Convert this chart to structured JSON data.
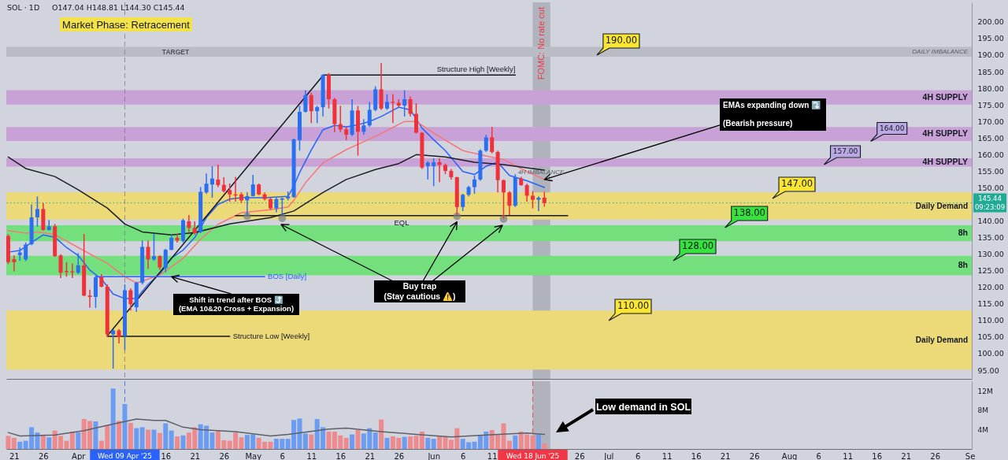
{
  "chart_data": [
    {
      "type": "candlestick",
      "title": "SOL · 1D",
      "subtitle": "O147.04 H148.81 L144.30 C145.44",
      "x": [
        "2025-03-20",
        "2025-03-21",
        "2025-03-22",
        "2025-03-23",
        "2025-03-24",
        "2025-03-25",
        "2025-03-26",
        "2025-03-27",
        "2025-03-28",
        "2025-03-29",
        "2025-03-30",
        "2025-03-31",
        "2025-04-01",
        "2025-04-02",
        "2025-04-03",
        "2025-04-04",
        "2025-04-05",
        "2025-04-06",
        "2025-04-07",
        "2025-04-08",
        "2025-04-09",
        "2025-04-10",
        "2025-04-11",
        "2025-04-12",
        "2025-04-13",
        "2025-04-14",
        "2025-04-15",
        "2025-04-16",
        "2025-04-17",
        "2025-04-18",
        "2025-04-19",
        "2025-04-20",
        "2025-04-21",
        "2025-04-22",
        "2025-04-23",
        "2025-04-24",
        "2025-04-25",
        "2025-04-26",
        "2025-04-27",
        "2025-04-28",
        "2025-04-29",
        "2025-04-30",
        "2025-05-01",
        "2025-05-02",
        "2025-05-03",
        "2025-05-04",
        "2025-05-05",
        "2025-05-06",
        "2025-05-07",
        "2025-05-08",
        "2025-05-09",
        "2025-05-10",
        "2025-05-11",
        "2025-05-12",
        "2025-05-13",
        "2025-05-14",
        "2025-05-15",
        "2025-05-16",
        "2025-05-17",
        "2025-05-18",
        "2025-05-19",
        "2025-05-20",
        "2025-05-21",
        "2025-05-22",
        "2025-05-23",
        "2025-05-24",
        "2025-05-25",
        "2025-05-26",
        "2025-05-27",
        "2025-05-28",
        "2025-05-29",
        "2025-05-30",
        "2025-05-31",
        "2025-06-01",
        "2025-06-02",
        "2025-06-03",
        "2025-06-04",
        "2025-06-05",
        "2025-06-06",
        "2025-06-07",
        "2025-06-08",
        "2025-06-09",
        "2025-06-10",
        "2025-06-11",
        "2025-06-12",
        "2025-06-13",
        "2025-06-14",
        "2025-06-15",
        "2025-06-16",
        "2025-06-17",
        "2025-06-18",
        "2025-06-19",
        "2025-06-20"
      ],
      "ohlc": [
        [
          135.5,
          136.0,
          127.0,
          127.6
        ],
        [
          128.5,
          129.6,
          124.8,
          127.6
        ],
        [
          129.7,
          132.0,
          128.0,
          130.5
        ],
        [
          128.4,
          133.5,
          127.9,
          132.9
        ],
        [
          133.0,
          145.0,
          132.7,
          141.1
        ],
        [
          141.1,
          147.4,
          138.3,
          143.6
        ],
        [
          143.6,
          145.4,
          137.1,
          137.3
        ],
        [
          137.3,
          140.3,
          137.1,
          138.4
        ],
        [
          138.4,
          139.1,
          129.2,
          129.4
        ],
        [
          129.6,
          130.0,
          122.8,
          124.4
        ],
        [
          124.9,
          127.6,
          123.2,
          124.6
        ],
        [
          124.8,
          127.2,
          122.8,
          124.5
        ],
        [
          124.4,
          130.3,
          124.0,
          126.6
        ],
        [
          126.6,
          136.1,
          117.3,
          117.5
        ],
        [
          117.5,
          119.3,
          113.8,
          117.1
        ],
        [
          117.1,
          123.6,
          113.8,
          123.0
        ],
        [
          123.0,
          124.0,
          120.0,
          120.2
        ],
        [
          120.2,
          120.9,
          105.0,
          105.8
        ],
        [
          105.8,
          107.4,
          95.5,
          107.0
        ],
        [
          107.0,
          107.4,
          103.1,
          105.0
        ],
        [
          105.4,
          120.9,
          101.1,
          119.1
        ],
        [
          119.1,
          119.7,
          113.0,
          114.9
        ],
        [
          114.0,
          121.7,
          112.6,
          121.4
        ],
        [
          121.4,
          134.1,
          120.9,
          132.2
        ],
        [
          132.2,
          134.1,
          125.6,
          128.4
        ],
        [
          128.4,
          136.1,
          128.0,
          129.4
        ],
        [
          129.4,
          129.6,
          125.2,
          126.0
        ],
        [
          125.8,
          131.6,
          124.5,
          131.3
        ],
        [
          131.3,
          135.9,
          131.2,
          134.9
        ],
        [
          134.9,
          136.1,
          133.5,
          134.1
        ],
        [
          134.0,
          140.7,
          133.5,
          140.2
        ],
        [
          139.9,
          141.8,
          136.7,
          137.9
        ],
        [
          137.9,
          139.9,
          135.9,
          136.3
        ],
        [
          136.7,
          150.2,
          136.3,
          148.8
        ],
        [
          148.6,
          154.3,
          148.2,
          151.2
        ],
        [
          151.0,
          156.5,
          147.0,
          152.8
        ],
        [
          152.5,
          157.0,
          150.2,
          150.8
        ],
        [
          150.9,
          153.2,
          148.6,
          149.0
        ],
        [
          149.3,
          151.3,
          145.8,
          148.0
        ],
        [
          148.0,
          153.3,
          145.8,
          147.7
        ],
        [
          148.0,
          148.6,
          145.4,
          146.2
        ],
        [
          146.2,
          148.6,
          141.6,
          147.5
        ],
        [
          147.5,
          153.9,
          147.4,
          151.0
        ],
        [
          151.0,
          151.3,
          147.8,
          148.0
        ],
        [
          148.0,
          148.6,
          146.2,
          146.6
        ],
        [
          146.6,
          147.0,
          143.4,
          143.8
        ],
        [
          143.8,
          147.0,
          142.6,
          146.6
        ],
        [
          146.4,
          147.0,
          141.8,
          146.8
        ],
        [
          146.8,
          148.9,
          146.2,
          147.4
        ],
        [
          147.2,
          164.8,
          147.0,
          164.6
        ],
        [
          164.4,
          174.7,
          161.2,
          172.9
        ],
        [
          172.9,
          179.4,
          172.7,
          177.9
        ],
        [
          177.9,
          178.6,
          169.5,
          173.1
        ],
        [
          173.1,
          174.7,
          169.5,
          174.3
        ],
        [
          174.3,
          184.2,
          171.5,
          184.0
        ],
        [
          184.0,
          184.6,
          173.9,
          176.7
        ],
        [
          176.7,
          177.1,
          166.8,
          169.2
        ],
        [
          169.2,
          174.7,
          166.8,
          167.6
        ],
        [
          167.6,
          168.4,
          164.4,
          166.0
        ],
        [
          166.0,
          176.7,
          165.6,
          173.3
        ],
        [
          173.3,
          174.7,
          159.7,
          166.9
        ],
        [
          166.9,
          170.7,
          166.0,
          168.8
        ],
        [
          168.8,
          175.9,
          168.4,
          173.5
        ],
        [
          173.5,
          180.6,
          173.1,
          179.7
        ],
        [
          179.7,
          187.6,
          173.5,
          173.9
        ],
        [
          173.9,
          178.2,
          173.5,
          175.9
        ],
        [
          175.9,
          178.2,
          169.5,
          175.6
        ],
        [
          175.6,
          176.7,
          174.3,
          174.8
        ],
        [
          174.8,
          179.4,
          171.5,
          176.7
        ],
        [
          176.7,
          177.5,
          171.5,
          172.3
        ],
        [
          172.3,
          175.5,
          166.4,
          166.6
        ],
        [
          166.6,
          166.8,
          155.7,
          156.1
        ],
        [
          156.5,
          158.0,
          152.5,
          157.6
        ],
        [
          156.5,
          158.9,
          150.5,
          157.7
        ],
        [
          157.7,
          158.9,
          151.7,
          156.9
        ],
        [
          156.9,
          157.3,
          154.1,
          155.1
        ],
        [
          155.1,
          155.7,
          152.5,
          153.2
        ],
        [
          153.2,
          153.3,
          141.8,
          144.2
        ],
        [
          144.2,
          148.2,
          143.0,
          147.9
        ],
        [
          147.9,
          150.6,
          147.4,
          150.2
        ],
        [
          150.2,
          153.7,
          148.2,
          152.5
        ],
        [
          152.5,
          161.6,
          152.1,
          161.2
        ],
        [
          161.2,
          166.0,
          160.8,
          165.2
        ],
        [
          165.2,
          168.4,
          160.4,
          160.8
        ],
        [
          160.8,
          161.2,
          148.6,
          152.3
        ],
        [
          152.3,
          152.5,
          140.7,
          148.6
        ],
        [
          148.6,
          149.0,
          141.8,
          144.6
        ],
        [
          144.6,
          154.1,
          144.2,
          153.2
        ],
        [
          152.8,
          153.3,
          150.6,
          150.8
        ],
        [
          150.8,
          151.3,
          145.8,
          147.6
        ],
        [
          147.6,
          149.0,
          143.8,
          146.4
        ],
        [
          146.4,
          147.4,
          143.0,
          147.0
        ],
        [
          147.04,
          148.81,
          144.3,
          145.44
        ]
      ],
      "colors": [
        "#f0303a",
        "#f0303a",
        "#2a6ef2",
        "#2a6ef2",
        "#2a6ef2",
        "#2a6ef2",
        "#f0303a",
        "#2a6ef2",
        "#f0303a",
        "#f0303a",
        "#f0303a",
        "#f0303a",
        "#2a6ef2",
        "#f0303a",
        "#f0303a",
        "#2a6ef2",
        "#f0303a",
        "#f0303a",
        "#2a6ef2",
        "#f0303a",
        "#2a6ef2",
        "#f0303a",
        "#2a6ef2",
        "#2a6ef2",
        "#f0303a",
        "#2a6ef2",
        "#f0303a",
        "#2a6ef2",
        "#2a6ef2",
        "#f0303a",
        "#2a6ef2",
        "#f0303a",
        "#f0303a",
        "#2a6ef2",
        "#2a6ef2",
        "#2a6ef2",
        "#f0303a",
        "#f0303a",
        "#f0303a",
        "#f0303a",
        "#f0303a",
        "#2a6ef2",
        "#2a6ef2",
        "#f0303a",
        "#f0303a",
        "#f0303a",
        "#2a6ef2",
        "#2a6ef2",
        "#2a6ef2",
        "#2a6ef2",
        "#2a6ef2",
        "#2a6ef2",
        "#f0303a",
        "#2a6ef2",
        "#2a6ef2",
        "#f0303a",
        "#f0303a",
        "#f0303a",
        "#f0303a",
        "#2a6ef2",
        "#f0303a",
        "#2a6ef2",
        "#2a6ef2",
        "#2a6ef2",
        "#f0303a",
        "#2a6ef2",
        "#f0303a",
        "#f0303a",
        "#2a6ef2",
        "#f0303a",
        "#f0303a",
        "#f0303a",
        "#2a6ef2",
        "#2a6ef2",
        "#f0303a",
        "#f0303a",
        "#f0303a",
        "#f0303a",
        "#2a6ef2",
        "#2a6ef2",
        "#2a6ef2",
        "#2a6ef2",
        "#2a6ef2",
        "#f0303a",
        "#f0303a",
        "#f0303a",
        "#f0303a",
        "#2a6ef2",
        "#f0303a",
        "#f0303a",
        "#f0303a",
        "#2a6ef2",
        "#f0303a"
      ],
      "series": [
        {
          "type": "line",
          "color": "#2962ff",
          "x": [
            "2025-03-20",
            "2025-03-22",
            "2025-03-24",
            "2025-03-26",
            "2025-03-28",
            "2025-03-30",
            "2025-04-01",
            "2025-04-03",
            "2025-04-05",
            "2025-04-07",
            "2025-04-09",
            "2025-04-11",
            "2025-04-13",
            "2025-04-15",
            "2025-04-17",
            "2025-04-19",
            "2025-04-21",
            "2025-04-23",
            "2025-04-25",
            "2025-04-27",
            "2025-04-29",
            "2025-05-03",
            "2025-05-07",
            "2025-05-08",
            "2025-05-09",
            "2025-05-11",
            "2025-05-13",
            "2025-05-15",
            "2025-05-17",
            "2025-05-19",
            "2025-05-21",
            "2025-05-23",
            "2025-05-26",
            "2025-05-28",
            "2025-05-30",
            "2025-06-01",
            "2025-06-03",
            "2025-06-06",
            "2025-06-08",
            "2025-06-10",
            "2025-06-12",
            "2025-06-14",
            "2025-06-17",
            "2025-06-20"
          ],
          "values": [
            130.6,
            131.1,
            133.5,
            135.8,
            135.1,
            132.0,
            129.6,
            125.2,
            122.5,
            118.0,
            116.6,
            116.6,
            120.9,
            124.0,
            128.8,
            131.2,
            135.0,
            141.0,
            145.0,
            146.6,
            147.0,
            147.0,
            147.4,
            150.5,
            154.6,
            161.4,
            167.5,
            168.8,
            168.4,
            169.0,
            170.0,
            171.5,
            174.3,
            173.5,
            168.0,
            164.5,
            161.2,
            154.9,
            154.0,
            156.5,
            157.7,
            153.7,
            152.1,
            150.1
          ]
        },
        {
          "type": "line",
          "color": "#f7767c",
          "x": [
            "2025-03-20",
            "2025-03-23",
            "2025-03-25",
            "2025-03-28",
            "2025-04-01",
            "2025-04-06",
            "2025-04-09",
            "2025-04-11",
            "2025-04-15",
            "2025-04-19",
            "2025-04-22",
            "2025-04-25",
            "2025-04-29",
            "2025-05-04",
            "2025-05-07",
            "2025-05-08",
            "2025-05-10",
            "2025-05-13",
            "2025-05-17",
            "2025-05-22",
            "2025-05-27",
            "2025-05-29",
            "2025-06-01",
            "2025-06-06",
            "2025-06-10",
            "2025-06-13",
            "2025-06-17",
            "2025-06-20"
          ],
          "values": [
            137.1,
            136.3,
            136.7,
            135.9,
            132.0,
            127.2,
            123.2,
            121.3,
            123.7,
            128.7,
            134.5,
            139.0,
            142.5,
            143.4,
            144.2,
            146.2,
            151.5,
            157.5,
            161.5,
            165.5,
            170.0,
            170.0,
            166.5,
            161.2,
            159.6,
            158.5,
            154.9,
            152.5
          ]
        },
        {
          "type": "line",
          "color": "#1c1f26",
          "x": [
            "2025-03-20",
            "2025-03-23",
            "2025-03-28",
            "2025-04-01",
            "2025-04-06",
            "2025-04-09",
            "2025-04-12",
            "2025-04-17",
            "2025-04-21",
            "2025-04-27",
            "2025-05-04",
            "2025-05-08",
            "2025-05-13",
            "2025-05-17",
            "2025-05-22",
            "2025-05-26",
            "2025-05-29",
            "2025-06-03",
            "2025-06-08",
            "2025-06-13",
            "2025-06-18",
            "2025-06-20"
          ],
          "values": [
            159.3,
            155.8,
            153.4,
            149.4,
            143.9,
            139.1,
            136.7,
            135.8,
            136.5,
            139.1,
            141.0,
            143.0,
            148.6,
            152.5,
            155.5,
            157.3,
            160.0,
            159.3,
            157.7,
            157.0,
            155.8,
            155.3
          ]
        },
        {
          "type": "line",
          "color": "#131722",
          "x": [
            "2025-04-06",
            "2025-05-13"
          ],
          "values": [
            105.4,
            183.8
          ]
        },
        {
          "type": "line",
          "name": "Structure High [Weekly]",
          "color": "#131722",
          "x": [
            "2025-05-13",
            "2025-06-15"
          ],
          "values": [
            184.0,
            184.0
          ]
        },
        {
          "type": "line",
          "name": "Structure Low [Weekly]",
          "color": "#131722",
          "x": [
            "2025-04-06",
            "2025-04-27"
          ],
          "values": [
            105.2,
            105.2
          ]
        },
        {
          "type": "line",
          "name": "EQL",
          "color": "#131722",
          "x": [
            "2025-04-28",
            "2025-06-24"
          ],
          "values": [
            141.6,
            141.6
          ]
        },
        {
          "type": "line",
          "name": "BOS [Daily]",
          "color": "#2962ff",
          "x": [
            "2025-04-04",
            "2025-05-03"
          ],
          "values": [
            123.2,
            123.2
          ]
        },
        {
          "type": "scatter",
          "color": "#7b7f89",
          "x": [
            "2025-04-30",
            "2025-05-06",
            "2025-06-05",
            "2025-06-13"
          ],
          "values": [
            141.4,
            140.8,
            141.4,
            140.6
          ]
        }
      ],
      "xlim": [
        "2025-03-19T16:00",
        "2025-09-01T08:00"
      ],
      "ylim": [
        92.4,
        205.9
      ],
      "yticks": [
        {
          "value": 95,
          "label": "95.00"
        },
        {
          "value": 100,
          "label": "100.00"
        },
        {
          "value": 105,
          "label": "105.00"
        },
        {
          "value": 110,
          "label": "110.00"
        },
        {
          "value": 115,
          "label": "115.00"
        },
        {
          "value": 120,
          "label": "120.00"
        },
        {
          "value": 125,
          "label": "125.00"
        },
        {
          "value": 130,
          "label": "130.00"
        },
        {
          "value": 135,
          "label": "135.00"
        },
        {
          "value": 140,
          "label": "140.00"
        },
        {
          "value": 150,
          "label": "150.00"
        },
        {
          "value": 155,
          "label": "155.00"
        },
        {
          "value": 160,
          "label": "160.00"
        },
        {
          "value": 165,
          "label": "165.00"
        },
        {
          "value": 170,
          "label": "170.00"
        },
        {
          "value": 175,
          "label": "175.00"
        },
        {
          "value": 180,
          "label": "180.00"
        },
        {
          "value": 185,
          "label": "185.00"
        },
        {
          "value": 190,
          "label": "190.00"
        },
        {
          "value": 195,
          "label": "195.00"
        },
        {
          "value": 200,
          "label": "200.00"
        }
      ],
      "tick_labels": "y",
      "bands": [
        {
          "axis": "y",
          "from": 189.5,
          "to": 192.5,
          "label": "DAILY IMBALANCE",
          "color": "#b9bcc5"
        },
        {
          "axis": "y",
          "from": 175.1,
          "to": 179.4,
          "label": "4H SUPPLY",
          "color": "#c8a2d6"
        },
        {
          "axis": "y",
          "from": 164.1,
          "to": 168.3,
          "label": "4H SUPPLY",
          "color": "#c8a2d6"
        },
        {
          "axis": "y",
          "from": 156.4,
          "to": 158.9,
          "label": "4H SUPPLY",
          "color": "#c8a2d6"
        },
        {
          "axis": "y",
          "from": 140.4,
          "to": 148.6,
          "label": "Daily Demand",
          "color": "#ecd977"
        },
        {
          "axis": "y",
          "from": 133.9,
          "to": 138.7,
          "label": "8h",
          "color": "#74df7d"
        },
        {
          "axis": "y",
          "from": 123.6,
          "to": 129.5,
          "label": "8h",
          "color": "#74df7d"
        },
        {
          "axis": "y",
          "from": 95.2,
          "to": 113.0,
          "label": "Daily Demand",
          "color": "#ecd977"
        },
        {
          "axis": "x",
          "from": "2025-06-18",
          "to": "2025-06-21",
          "label": "FOMC: No rate cut",
          "color": "#9598a1"
        }
      ],
      "ref_lines": [
        {
          "axis": "y",
          "value": 145.44,
          "label": "145.44\n09:23:09",
          "color": "#22ab94",
          "line_style": "dotted"
        },
        {
          "axis": "x",
          "value": "2025-04-09",
          "color": "#787b86",
          "line_style": "dashed"
        }
      ],
      "annotations": [
        "Market Phase: Retracement",
        "TARGET",
        {
          "text": "EMAs expanding down ⤵️\n(Bearish pressure)",
          "x": "2025-06-20",
          "y": 152.5
        },
        {
          "text": "Buy trap\n(Stay cautious ⚠️)",
          "x": "2025-06-05",
          "y": 141.4
        },
        {
          "text": "Shift in trend after BOS ⤴️\n(EMA 10&20 Cross + Expansion)",
          "x": "2025-04-17",
          "y": 123.2
        },
        "4H IMBALANCE",
        {
          "text": "190.00",
          "x": "2025-06-29",
          "y": 190
        },
        {
          "text": "164.00",
          "x": "2025-08-15",
          "y": 164
        },
        {
          "text": "157.00",
          "x": "2025-08-07",
          "y": 157
        },
        "147.00",
        {
          "text": "138.00",
          "x": "2025-07-21",
          "y": 138
        },
        "128.00",
        "110.00"
      ]
    },
    {
      "type": "bar",
      "x": [
        "2025-03-20",
        "2025-03-21",
        "2025-03-22",
        "2025-03-23",
        "2025-03-24",
        "2025-03-25",
        "2025-03-26",
        "2025-03-27",
        "2025-03-28",
        "2025-03-29",
        "2025-03-30",
        "2025-03-31",
        "2025-04-01",
        "2025-04-02",
        "2025-04-03",
        "2025-04-04",
        "2025-04-05",
        "2025-04-06",
        "2025-04-07",
        "2025-04-08",
        "2025-04-09",
        "2025-04-10",
        "2025-04-11",
        "2025-04-12",
        "2025-04-13",
        "2025-04-14",
        "2025-04-15",
        "2025-04-16",
        "2025-04-17",
        "2025-04-18",
        "2025-04-19",
        "2025-04-20",
        "2025-04-21",
        "2025-04-22",
        "2025-04-23",
        "2025-04-24",
        "2025-04-25",
        "2025-04-26",
        "2025-04-27",
        "2025-04-28",
        "2025-04-29",
        "2025-04-30",
        "2025-05-01",
        "2025-05-02",
        "2025-05-03",
        "2025-05-04",
        "2025-05-05",
        "2025-05-06",
        "2025-05-07",
        "2025-05-08",
        "2025-05-09",
        "2025-05-10",
        "2025-05-11",
        "2025-05-12",
        "2025-05-13",
        "2025-05-14",
        "2025-05-15",
        "2025-05-16",
        "2025-05-17",
        "2025-05-18",
        "2025-05-19",
        "2025-05-20",
        "2025-05-21",
        "2025-05-22",
        "2025-05-23",
        "2025-05-24",
        "2025-05-25",
        "2025-05-26",
        "2025-05-27",
        "2025-05-28",
        "2025-05-29",
        "2025-05-30",
        "2025-05-31",
        "2025-06-01",
        "2025-06-02",
        "2025-06-03",
        "2025-06-04",
        "2025-06-05",
        "2025-06-06",
        "2025-06-07",
        "2025-06-08",
        "2025-06-09",
        "2025-06-10",
        "2025-06-11",
        "2025-06-12",
        "2025-06-13",
        "2025-06-14",
        "2025-06-15",
        "2025-06-16",
        "2025-06-17",
        "2025-06-18",
        "2025-06-19",
        "2025-06-20"
      ],
      "series": [
        {
          "values": [
            2.7,
            2.3,
            1.5,
            1.7,
            4.5,
            3.4,
            2.9,
            2.4,
            3.8,
            2.7,
            1.7,
            3.6,
            3.4,
            6.2,
            5.8,
            5.7,
            1.7,
            4.9,
            12.5,
            5.8,
            9.3,
            5.4,
            4.3,
            4.5,
            4.0,
            4.0,
            3.3,
            5.3,
            3.8,
            2.6,
            2.8,
            3.4,
            4.5,
            5.1,
            4.8,
            3.4,
            3.9,
            1.8,
            1.7,
            3.4,
            2.4,
            2.9,
            3.0,
            2.3,
            1.5,
            1.5,
            2.1,
            2.1,
            2.1,
            6.0,
            6.3,
            3.2,
            3.0,
            6.2,
            4.5,
            3.6,
            3.6,
            2.8,
            2.3,
            3.0,
            3.9,
            3.2,
            4.3,
            3.4,
            6.1,
            2.3,
            2.6,
            2.3,
            2.5,
            2.6,
            2.7,
            3.6,
            2.3,
            2.1,
            2.7,
            2.5,
            1.9,
            4.3,
            2.1,
            1.4,
            1.5,
            2.9,
            3.6,
            3.9,
            2.9,
            5.3,
            1.7,
            2.8,
            3.6,
            3.0,
            2.8,
            3.0,
            1.1
          ],
          "colors": [
            "#ec8a8e",
            "#ec8a8e",
            "#6b9cf2",
            "#6b9cf2",
            "#6b9cf2",
            "#6b9cf2",
            "#ec8a8e",
            "#6b9cf2",
            "#ec8a8e",
            "#ec8a8e",
            "#ec8a8e",
            "#ec8a8e",
            "#6b9cf2",
            "#ec8a8e",
            "#ec8a8e",
            "#6b9cf2",
            "#ec8a8e",
            "#ec8a8e",
            "#6b9cf2",
            "#ec8a8e",
            "#6b9cf2",
            "#ec8a8e",
            "#6b9cf2",
            "#6b9cf2",
            "#ec8a8e",
            "#6b9cf2",
            "#ec8a8e",
            "#6b9cf2",
            "#6b9cf2",
            "#ec8a8e",
            "#6b9cf2",
            "#ec8a8e",
            "#ec8a8e",
            "#6b9cf2",
            "#6b9cf2",
            "#6b9cf2",
            "#ec8a8e",
            "#ec8a8e",
            "#ec8a8e",
            "#ec8a8e",
            "#ec8a8e",
            "#6b9cf2",
            "#6b9cf2",
            "#ec8a8e",
            "#ec8a8e",
            "#ec8a8e",
            "#6b9cf2",
            "#6b9cf2",
            "#6b9cf2",
            "#6b9cf2",
            "#6b9cf2",
            "#6b9cf2",
            "#ec8a8e",
            "#6b9cf2",
            "#6b9cf2",
            "#ec8a8e",
            "#ec8a8e",
            "#ec8a8e",
            "#ec8a8e",
            "#6b9cf2",
            "#ec8a8e",
            "#6b9cf2",
            "#6b9cf2",
            "#6b9cf2",
            "#ec8a8e",
            "#6b9cf2",
            "#ec8a8e",
            "#ec8a8e",
            "#6b9cf2",
            "#ec8a8e",
            "#ec8a8e",
            "#ec8a8e",
            "#6b9cf2",
            "#6b9cf2",
            "#ec8a8e",
            "#ec8a8e",
            "#ec8a8e",
            "#ec8a8e",
            "#6b9cf2",
            "#6b9cf2",
            "#6b9cf2",
            "#6b9cf2",
            "#6b9cf2",
            "#ec8a8e",
            "#ec8a8e",
            "#ec8a8e",
            "#ec8a8e",
            "#6b9cf2",
            "#ec8a8e",
            "#ec8a8e",
            "#ec8a8e",
            "#6b9cf2",
            "#ec8a8e"
          ]
        },
        {
          "type": "line",
          "color": "#5d606b",
          "x": [
            "2025-03-20",
            "2025-03-22",
            "2025-03-28",
            "2025-04-02",
            "2025-04-06",
            "2025-04-11",
            "2025-04-14",
            "2025-04-16",
            "2025-04-19",
            "2025-04-22",
            "2025-04-28",
            "2025-05-04",
            "2025-05-07",
            "2025-05-14",
            "2025-05-17",
            "2025-05-23",
            "2025-05-29",
            "2025-06-04",
            "2025-06-10",
            "2025-06-17",
            "2025-06-20"
          ],
          "values": [
            3.4,
            2.7,
            2.9,
            3.8,
            4.9,
            6.2,
            5.9,
            5.9,
            4.5,
            4.0,
            3.6,
            2.7,
            3.0,
            4.1,
            4.3,
            3.6,
            3.0,
            2.5,
            2.9,
            3.3,
            3.0
          ]
        }
      ],
      "xlim": [
        "2025-03-19T16:00",
        "2025-09-01T08:00"
      ],
      "xticks": [
        {
          "value": "2025-03-21",
          "label": "21"
        },
        {
          "value": "2025-03-26",
          "label": "26"
        },
        {
          "value": "2025-04-01",
          "label": "Apr"
        },
        {
          "value": "2025-04-16",
          "label": "16"
        },
        {
          "value": "2025-04-21",
          "label": "21"
        },
        {
          "value": "2025-04-26",
          "label": "26"
        },
        {
          "value": "2025-05-01",
          "label": "May"
        },
        {
          "value": "2025-05-06",
          "label": "6"
        },
        {
          "value": "2025-05-11",
          "label": "11"
        },
        {
          "value": "2025-05-16",
          "label": "16"
        },
        {
          "value": "2025-05-21",
          "label": "21"
        },
        {
          "value": "2025-05-26",
          "label": "26"
        },
        {
          "value": "2025-06-01",
          "label": "Jun"
        },
        {
          "value": "2025-06-06",
          "label": "6"
        },
        {
          "value": "2025-06-11",
          "label": "11"
        },
        {
          "value": "2025-06-26",
          "label": "26"
        },
        {
          "value": "2025-07-01",
          "label": "Jul"
        },
        {
          "value": "2025-07-06",
          "label": "6"
        },
        {
          "value": "2025-07-11",
          "label": "11"
        },
        {
          "value": "2025-07-16",
          "label": "16"
        },
        {
          "value": "2025-07-21",
          "label": "21"
        },
        {
          "value": "2025-07-26",
          "label": "26"
        },
        {
          "value": "2025-08-01",
          "label": "Aug"
        },
        {
          "value": "2025-08-06",
          "label": "6"
        },
        {
          "value": "2025-08-11",
          "label": "11"
        },
        {
          "value": "2025-08-16",
          "label": "16"
        },
        {
          "value": "2025-08-21",
          "label": "21"
        },
        {
          "value": "2025-08-26",
          "label": "26"
        },
        {
          "value": "2025-09-01",
          "label": "Se"
        }
      ],
      "ylim": [
        0,
        14
      ],
      "yticks": [
        {
          "value": 4,
          "label": "4M"
        },
        {
          "value": 8,
          "label": "8M"
        },
        {
          "value": 12,
          "label": "12M"
        }
      ],
      "bands": [
        {
          "axis": "x",
          "from": "2025-06-18",
          "to": "2025-06-21",
          "color": "#9598a1"
        }
      ],
      "ref_lines": [
        {
          "axis": "x",
          "value": "2025-04-09",
          "label": "Wed 09 Apr '25",
          "color": "#2962ff",
          "line_style": "dashed"
        },
        {
          "axis": "x",
          "value": "2025-06-18",
          "label": "Wed 18 Jun '25",
          "color": "#f23645",
          "line_style": "dashed"
        }
      ],
      "annotations": [
        "Low demand in SOL"
      ]
    }
  ]
}
